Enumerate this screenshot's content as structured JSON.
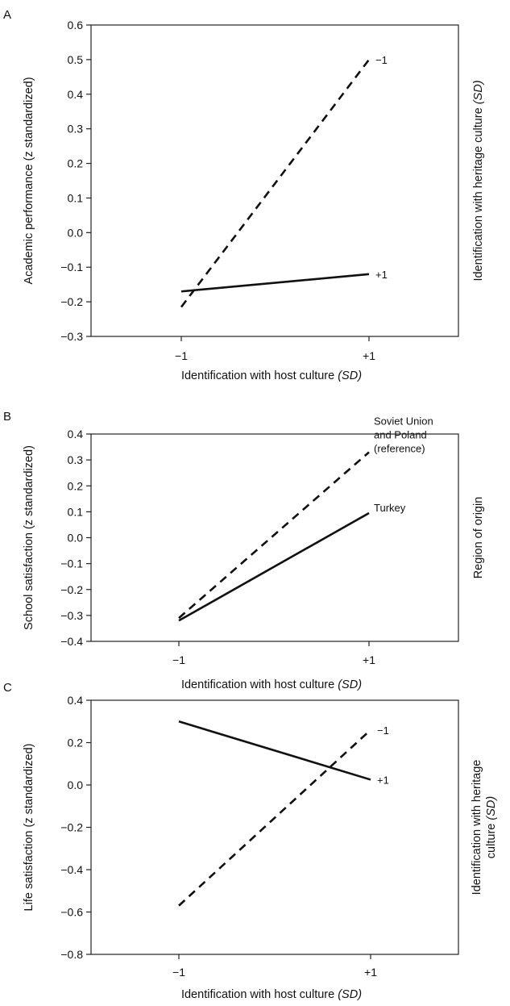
{
  "chart_data": [
    {
      "panel": "A",
      "type": "line",
      "xlabel": "Identification with host culture",
      "xlabel_italic": "(SD)",
      "ylabel": "Academic performance (z standardized)",
      "right_label": "Identification with heritage culture",
      "right_label_italic": "(SD)",
      "categories": [
        "−1",
        "+1"
      ],
      "ylim": [
        -0.3,
        0.6
      ],
      "yticks": [
        0.6,
        0.5,
        0.4,
        0.3,
        0.2,
        0.1,
        0.0,
        -0.1,
        -0.2,
        -0.3
      ],
      "ytick_labels": [
        "0.6",
        "0.5",
        "0.4",
        "0.3",
        "0.2",
        "0.1",
        "0.0",
        "−0.1",
        "−0.2",
        "−0.3"
      ],
      "grid": false,
      "series": [
        {
          "name": "−1",
          "style": "dashed",
          "values": [
            -0.215,
            0.5
          ]
        },
        {
          "name": "+1",
          "style": "solid",
          "values": [
            -0.17,
            -0.12
          ]
        }
      ]
    },
    {
      "panel": "B",
      "type": "line",
      "xlabel": "Identification with host culture",
      "xlabel_italic": "(SD)",
      "ylabel": "School satisfaction (z standardized)",
      "right_label": "Region of origin",
      "right_label_italic": "",
      "categories": [
        "−1",
        "+1"
      ],
      "ylim": [
        -0.4,
        0.4
      ],
      "yticks": [
        0.4,
        0.3,
        0.2,
        0.1,
        0.0,
        -0.1,
        -0.2,
        -0.3,
        -0.4
      ],
      "ytick_labels": [
        "0.4",
        "0.3",
        "0.2",
        "0.1",
        "0.0",
        "−0.1",
        "−0.2",
        "−0.3",
        "−0.4"
      ],
      "grid": false,
      "series": [
        {
          "name": "Soviet Union and Poland (reference)",
          "name_lines": [
            "Soviet Union",
            "and Poland",
            "(reference)"
          ],
          "style": "dashed",
          "values": [
            -0.31,
            0.33
          ]
        },
        {
          "name": "Turkey",
          "name_lines": [
            "Turkey"
          ],
          "style": "solid",
          "values": [
            -0.32,
            0.095
          ]
        }
      ]
    },
    {
      "panel": "C",
      "type": "line",
      "xlabel": "Identification with host culture",
      "xlabel_italic": "(SD)",
      "ylabel": "Life satisfaction (z standardized)",
      "right_label": "Identification with heritage",
      "right_label_line2": "culture",
      "right_label_italic": "(SD)",
      "categories": [
        "−1",
        "+1"
      ],
      "ylim": [
        -0.8,
        0.4
      ],
      "yticks": [
        0.4,
        0.2,
        0.0,
        -0.2,
        -0.4,
        -0.6,
        -0.8
      ],
      "ytick_labels": [
        "0.4",
        "0.2",
        "0.0",
        "−0.2",
        "−0.4",
        "−0.6",
        "−0.8"
      ],
      "grid": false,
      "series": [
        {
          "name": "−1",
          "style": "dashed",
          "values": [
            -0.57,
            0.26
          ]
        },
        {
          "name": "+1",
          "style": "solid",
          "values": [
            0.3,
            0.025
          ]
        }
      ]
    }
  ]
}
